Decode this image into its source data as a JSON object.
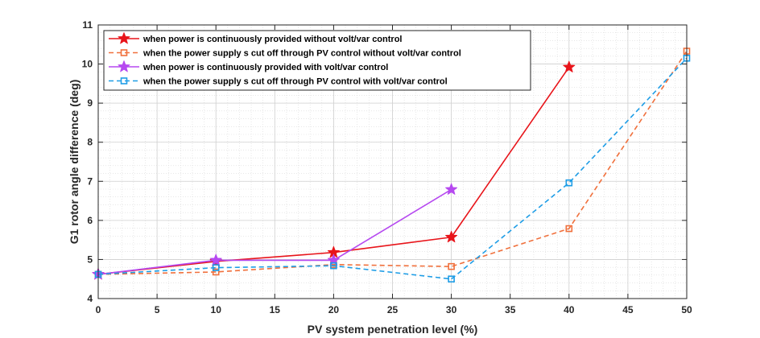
{
  "chart_data": {
    "type": "line",
    "title": "",
    "xlabel": "PV system penetration level (%)",
    "ylabel": "G1 rotor angle difference (deg)",
    "xlim": [
      0,
      50
    ],
    "ylim": [
      4,
      11
    ],
    "xticks": [
      "0",
      "5",
      "10",
      "15",
      "20",
      "25",
      "30",
      "35",
      "40",
      "45",
      "50"
    ],
    "yticks": [
      "4",
      "5",
      "6",
      "7",
      "8",
      "9",
      "10",
      "11"
    ],
    "grid": true,
    "minor_grid": true,
    "legend_position": "top-left",
    "series": [
      {
        "name": "when power is continuously provided without volt/var control",
        "color": "#e8141a",
        "line_style": "solid",
        "marker": "star",
        "x": [
          0,
          10,
          20,
          30,
          40
        ],
        "y": [
          4.62,
          4.95,
          5.18,
          5.57,
          9.92
        ]
      },
      {
        "name": "when the power supply s cut off through PV control without volt/var control",
        "color": "#f0703c",
        "line_style": "dashed",
        "marker": "square",
        "x": [
          0,
          10,
          20,
          30,
          40,
          50
        ],
        "y": [
          4.62,
          4.68,
          4.87,
          4.82,
          5.79,
          10.33
        ]
      },
      {
        "name": "when power is continuously provided with volt/var control",
        "color": "#b649f0",
        "line_style": "solid",
        "marker": "star",
        "x": [
          0,
          10,
          20,
          30
        ],
        "y": [
          4.62,
          4.98,
          4.98,
          6.79
        ]
      },
      {
        "name": "when the power supply s cut off through PV control with volt/var control",
        "color": "#1e9de6",
        "line_style": "dashed",
        "marker": "square",
        "x": [
          0,
          10,
          20,
          30,
          40,
          50
        ],
        "y": [
          4.62,
          4.79,
          4.84,
          4.5,
          6.96,
          10.15
        ]
      }
    ]
  }
}
